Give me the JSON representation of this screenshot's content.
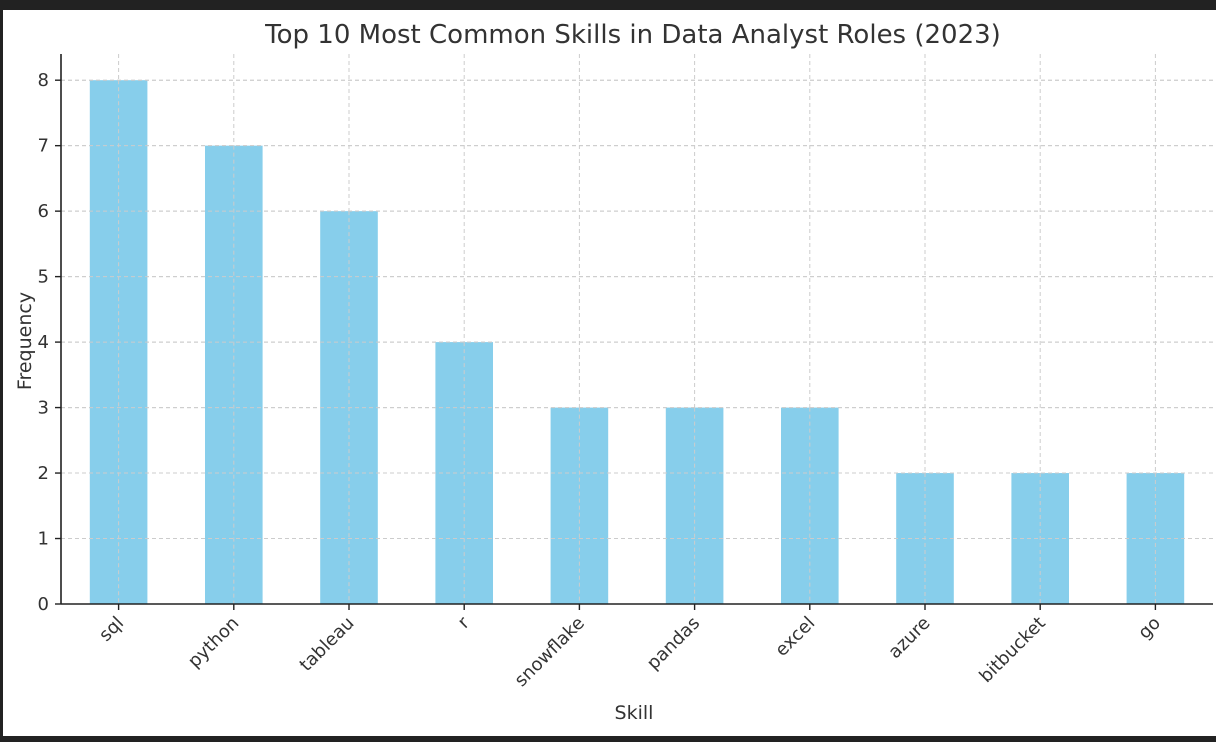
{
  "chart_data": {
    "type": "bar",
    "title": "Top 10 Most Common Skills in Data Analyst Roles (2023)",
    "xlabel": "Skill",
    "ylabel": "Frequency",
    "categories": [
      "sql",
      "python",
      "tableau",
      "r",
      "snowflake",
      "pandas",
      "excel",
      "azure",
      "bitbucket",
      "go"
    ],
    "values": [
      8,
      7,
      6,
      4,
      3,
      3,
      3,
      2,
      2,
      2
    ],
    "ylim": [
      0,
      8.4
    ],
    "yticks": [
      0,
      1,
      2,
      3,
      4,
      5,
      6,
      7,
      8
    ],
    "grid": true,
    "bar_color": "#87CEEB"
  }
}
